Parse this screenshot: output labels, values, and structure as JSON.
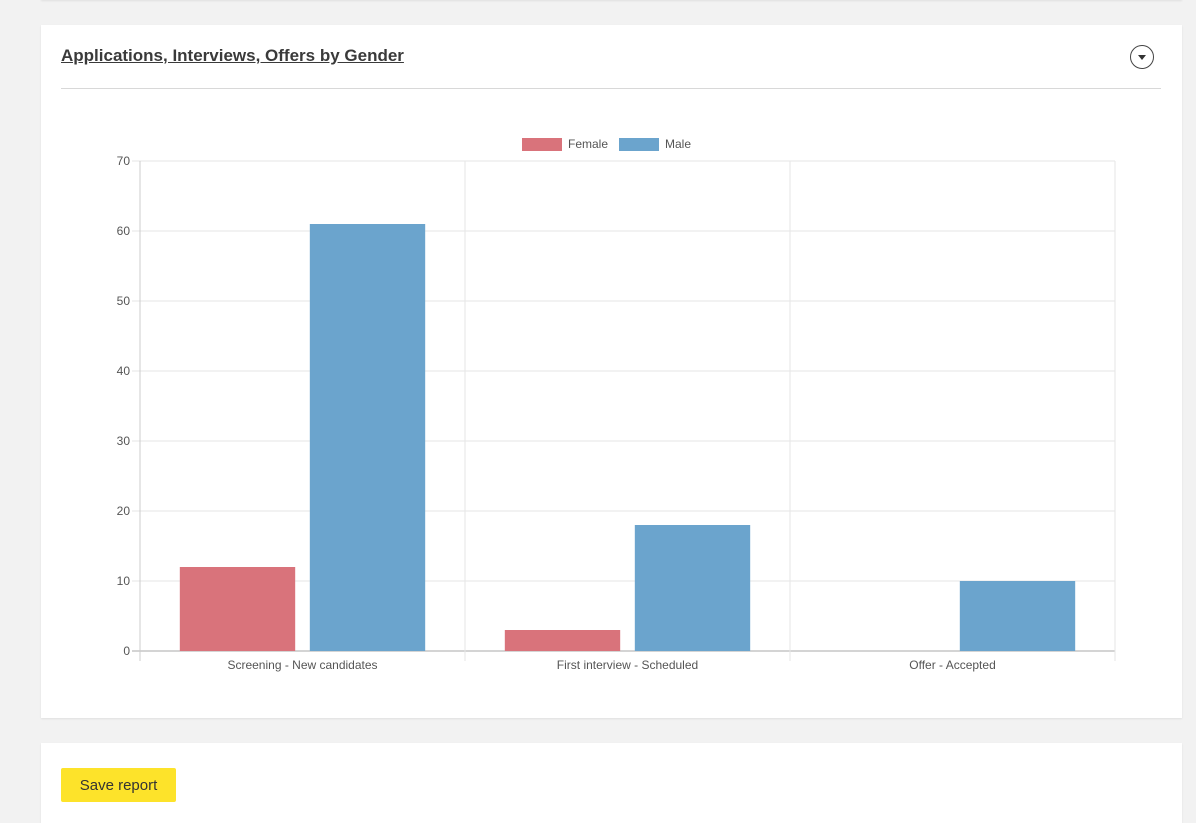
{
  "report": {
    "title": "Applications, Interviews, Offers by Gender",
    "toggle_icon": "chevron-down-icon"
  },
  "actions": {
    "save_label": "Save report"
  },
  "colors": {
    "female": "#d9737b",
    "male": "#6ba4cd"
  },
  "chart_data": {
    "type": "bar",
    "categories": [
      "Screening - New candidates",
      "First interview - Scheduled",
      "Offer - Accepted"
    ],
    "series": [
      {
        "name": "Female",
        "values": [
          12,
          3,
          0
        ]
      },
      {
        "name": "Male",
        "values": [
          61,
          18,
          10
        ]
      }
    ],
    "ylim": [
      0,
      70
    ],
    "yticks": [
      0,
      10,
      20,
      30,
      40,
      50,
      60,
      70
    ],
    "grid": true,
    "legend": "top-center"
  }
}
